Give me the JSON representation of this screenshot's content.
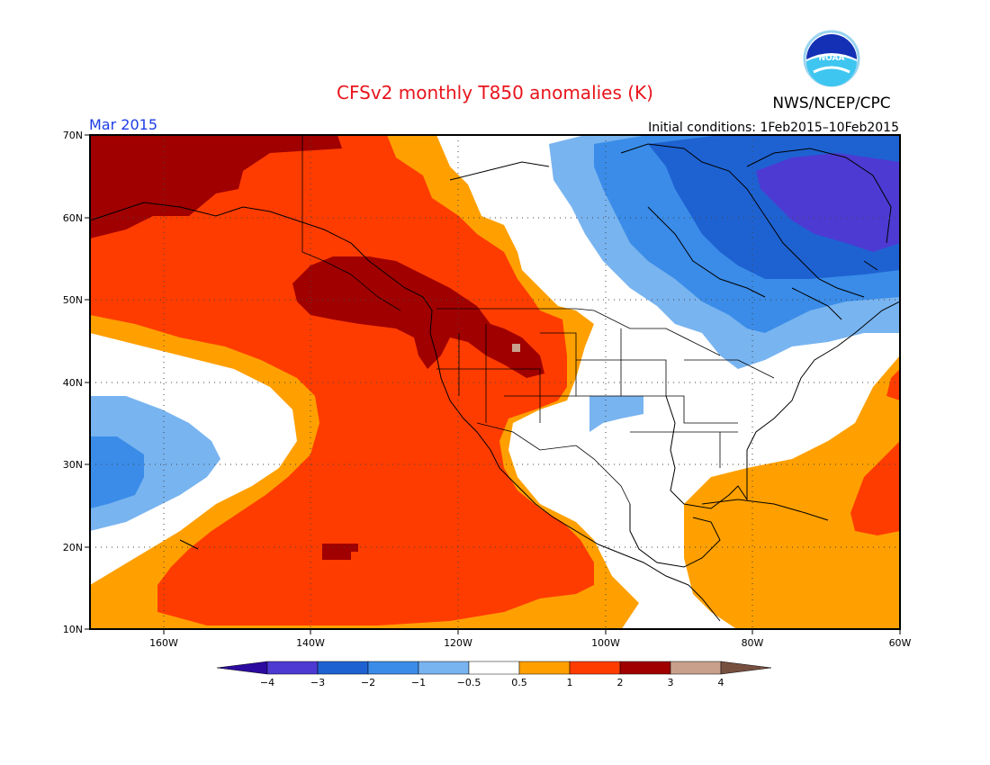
{
  "header": {
    "title": "CFSv2 monthly T850 anomalies (K)",
    "month": "Mar 2015",
    "initial_conditions": "Initial conditions: 1Feb2015–10Feb2015",
    "organization": "NWS/NCEP/CPC",
    "logo_text": "NOAA"
  },
  "map": {
    "projection": "cylindrical equidistant",
    "lon_range": [
      -170,
      -60
    ],
    "lat_range": [
      10,
      70
    ],
    "lat_tick_labels": [
      "70N",
      "60N",
      "50N",
      "40N",
      "30N",
      "20N",
      "10N"
    ],
    "lon_tick_labels": [
      "160W",
      "140W",
      "120W",
      "100W",
      "80W",
      "60W"
    ],
    "gridlines": "dotted",
    "variable": "T850 anomaly (K)"
  },
  "colorbar": {
    "boundaries": [
      "−4",
      "−3",
      "−2",
      "−1",
      "−0.5",
      "0.5",
      "1",
      "2",
      "3",
      "4"
    ],
    "colors": [
      "#2c0aa0",
      "#4d3ad2",
      "#1e62d2",
      "#3a8ce8",
      "#78b4f0",
      "#ffffff",
      "#ffa000",
      "#ff3c00",
      "#a00000",
      "#c8a08c",
      "#785040"
    ]
  }
}
